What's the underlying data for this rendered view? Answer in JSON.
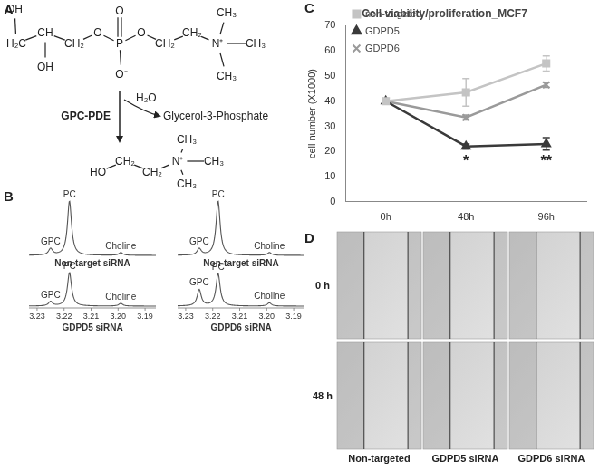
{
  "panel_labels": [
    "A",
    "B",
    "C",
    "D"
  ],
  "panel_a": {
    "substrate": [
      "OH",
      "H₂C",
      "CH",
      "OH",
      "CH₂",
      "O",
      "P",
      "O",
      "O⁻",
      "O",
      "CH₂",
      "CH₂",
      "N⁺",
      "CH₃",
      "CH₃",
      "CH₃"
    ],
    "enzyme": "GPC-PDE",
    "reagent": "H₂O",
    "byproduct": "Glycerol-3-Phosphate",
    "product": [
      "HO",
      "CH₂",
      "CH₂",
      "N⁺",
      "CH₃",
      "CH₃",
      "CH₃"
    ]
  },
  "panel_b": {
    "xlim": [
      3.233,
      3.186
    ],
    "xticks": [
      3.23,
      3.22,
      3.21,
      {
        "value": 3.2,
        "label": "3.20"
      },
      3.19
    ],
    "spectra": [
      {
        "caption": "Non-target siRNA",
        "peaks": [
          {
            "label": "GPC",
            "ppm": 3.225,
            "height": 0.12
          },
          {
            "label": "PC",
            "ppm": 3.218,
            "height": 1.0
          },
          {
            "label": "Choline",
            "ppm": 3.199,
            "height": 0.05
          }
        ]
      },
      {
        "caption": "Non-target siRNA",
        "peaks": [
          {
            "label": "GPC",
            "ppm": 3.225,
            "height": 0.12
          },
          {
            "label": "PC",
            "ppm": 3.218,
            "height": 1.0
          },
          {
            "label": "Choline",
            "ppm": 3.199,
            "height": 0.05
          }
        ]
      },
      {
        "caption": "GDPD5 siRNA",
        "peaks": [
          {
            "label": "GPC",
            "ppm": 3.225,
            "height": 0.08
          },
          {
            "label": "PC",
            "ppm": 3.218,
            "height": 0.62
          },
          {
            "label": "Choline",
            "ppm": 3.199,
            "height": 0.05
          }
        ]
      },
      {
        "caption": "GDPD6 siRNA",
        "peaks": [
          {
            "label": "GPC",
            "ppm": 3.225,
            "height": 0.3
          },
          {
            "label": "PC",
            "ppm": 3.218,
            "height": 0.6
          },
          {
            "label": "Choline",
            "ppm": 3.199,
            "height": 0.06
          }
        ]
      }
    ]
  },
  "chart_data": {
    "type": "line",
    "title": "Cell viability/proliferation_MCF7",
    "y_label": "cell number (X1000)",
    "categories": [
      "0h",
      "48h",
      "96h"
    ],
    "series": [
      {
        "name": "non-targeted",
        "color": "#c4c4c4",
        "marker": "square",
        "values": [
          40,
          43.5,
          55
        ],
        "errors": [
          0,
          5.5,
          3
        ]
      },
      {
        "name": "GDPD5",
        "color": "#3a3a3a",
        "marker": "triangle",
        "values": [
          40,
          22,
          23
        ],
        "errors": [
          0,
          1,
          2.5
        ]
      },
      {
        "name": "GDPD6",
        "color": "#9a9a9a",
        "marker": "x",
        "values": [
          40,
          33.5,
          46.5
        ],
        "errors": [
          0,
          1,
          1
        ]
      }
    ],
    "ylim": [
      0,
      70
    ],
    "yticks": [
      0,
      10,
      20,
      30,
      40,
      50,
      60,
      70
    ],
    "grid": false,
    "legend": "upper left",
    "annotations": [
      {
        "text": "*",
        "x": "48h",
        "y": 16
      },
      {
        "text": "**",
        "x": "96h",
        "y": 16
      }
    ]
  },
  "panel_d": {
    "row_labels": [
      "0 h",
      "48 h"
    ],
    "column_labels": [
      "Non-targeted",
      "GDPD5 siRNA",
      "GDPD6 siRNA"
    ]
  }
}
